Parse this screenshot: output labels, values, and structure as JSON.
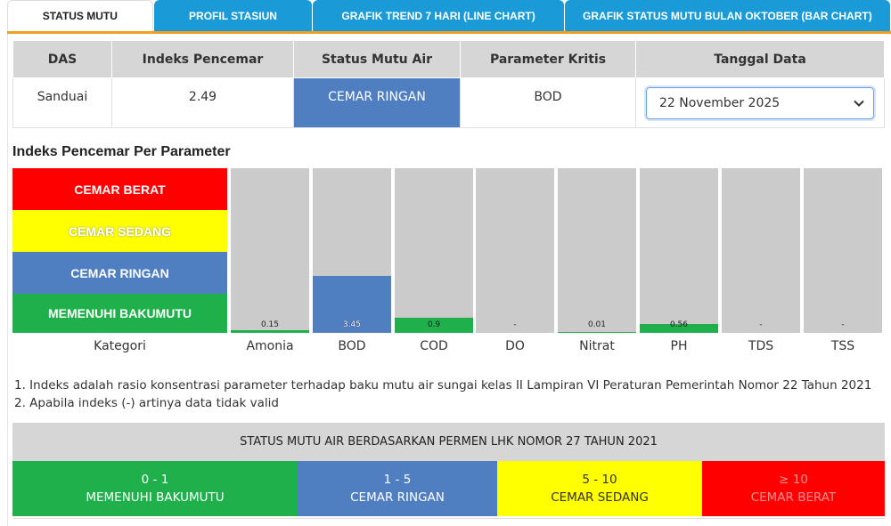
{
  "tabs": [
    {
      "label": "STATUS MUTU",
      "active": true
    },
    {
      "label": "PROFIL STASIUN",
      "active": false
    },
    {
      "label": "GRAFIK TREND 7 HARI (LINE CHART)",
      "active": false
    },
    {
      "label": "GRAFIK STATUS MUTU BULAN OKTOBER (BAR CHART)",
      "active": false
    }
  ],
  "table": {
    "headers": [
      "DAS",
      "Indeks Pencemar",
      "Status Mutu Air",
      "Parameter Kritis",
      "Tanggal Data"
    ],
    "das": "Sanduai",
    "indeks": "2.49",
    "status": "CEMAR RINGAN",
    "status_color": "#4f7fc0",
    "parameter_kritis": "BOD",
    "tanggal": "22 November 2025"
  },
  "section_title": "Indeks Pencemar Per Parameter",
  "categories": {
    "label": "Kategori",
    "items": [
      {
        "label": "CEMAR BERAT",
        "color": "#ff0000"
      },
      {
        "label": "CEMAR SEDANG",
        "color": "#ffff00"
      },
      {
        "label": "CEMAR RINGAN",
        "color": "#4f7fc0"
      },
      {
        "label": "MEMENUHI BAKUMUTU",
        "color": "#20b04b"
      }
    ]
  },
  "chart_data": {
    "type": "bar",
    "categories": [
      "Amonia",
      "BOD",
      "COD",
      "DO",
      "Nitrat",
      "PH",
      "TDS",
      "TSS"
    ],
    "value_labels": [
      "0.15",
      "3.45",
      "0.9",
      "-",
      "0.01",
      "0.56",
      "-",
      "-"
    ],
    "values": [
      0.15,
      3.45,
      0.9,
      null,
      0.01,
      0.56,
      null,
      null
    ],
    "ylim": [
      0,
      12
    ]
  },
  "notes": [
    "1. Indeks adalah rasio konsentrasi parameter terhadap baku mutu air sungai kelas II Lampiran VI Peraturan Pemerintah Nomor 22 Tahun 2021",
    "2. Apabila indeks (-) artinya data tidak valid"
  ],
  "legend": {
    "title": "STATUS MUTU AIR BERDASARKAN PERMEN LHK NOMOR 27 TAHUN 2021",
    "items": [
      {
        "range": "0 - 1",
        "label": "MEMENUHI BAKUMUTU",
        "color": "#20b04b"
      },
      {
        "range": "1 - 5",
        "label": "CEMAR RINGAN",
        "color": "#4f7fc0"
      },
      {
        "range": "5 - 10",
        "label": "CEMAR SEDANG",
        "color": "#ffff00"
      },
      {
        "range": "≥ 10",
        "label": "CEMAR BERAT",
        "color": "#ff0000"
      }
    ]
  }
}
